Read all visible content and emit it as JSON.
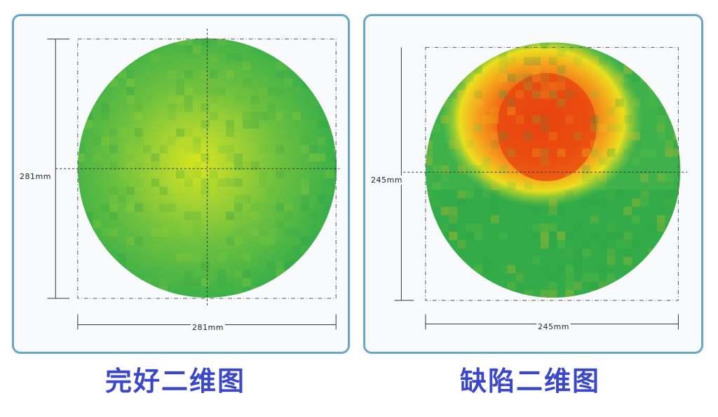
{
  "panels": [
    {
      "caption": "完好二维图",
      "height_label": "281mm",
      "width_label": "281mm"
    },
    {
      "caption": "缺陷二维图",
      "height_label": "245mm",
      "width_label": "245mm"
    }
  ],
  "colors": {
    "border": "#6aa6c9",
    "caption": "#3b47c9",
    "green": "#3cb24a",
    "light_green": "#7cc43c",
    "yellow": "#e6e21c",
    "orange": "#f4a11a",
    "red": "#ee5a12"
  }
}
